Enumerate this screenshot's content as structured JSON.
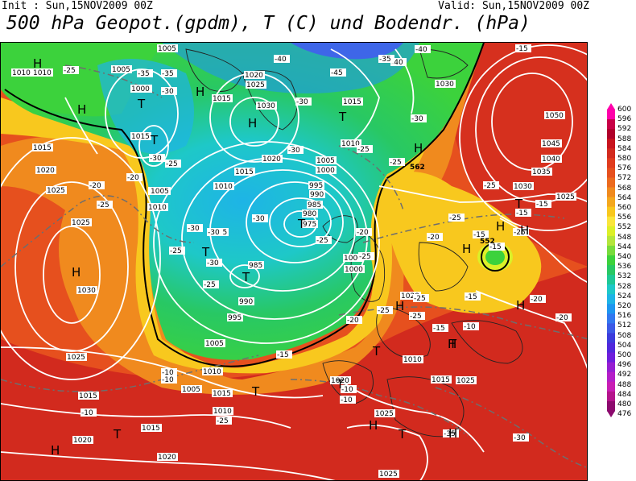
{
  "header": {
    "init": "Init : Sun,15NOV2009 00Z",
    "valid": "Valid: Sun,15NOV2009 00Z",
    "title": "500 hPa Geopot.(gpdm), T (C) und Bodendr. (hPa)"
  },
  "legend": {
    "ticks": [
      "600",
      "596",
      "592",
      "588",
      "584",
      "580",
      "576",
      "572",
      "568",
      "564",
      "560",
      "556",
      "552",
      "548",
      "544",
      "540",
      "536",
      "532",
      "528",
      "524",
      "520",
      "516",
      "512",
      "508",
      "504",
      "500",
      "496",
      "492",
      "488",
      "484",
      "480",
      "476"
    ],
    "colors": [
      "#ff00aa",
      "#c80046",
      "#b0002a",
      "#c8141e",
      "#d22a1e",
      "#e03c1e",
      "#e6501e",
      "#ec6a1e",
      "#f08a1e",
      "#f4a81e",
      "#f8c81e",
      "#fae63c",
      "#dcf028",
      "#b4e63c",
      "#78dc3c",
      "#3cd23c",
      "#28c864",
      "#1ec896",
      "#1ec8c8",
      "#1eb4e6",
      "#1e96f0",
      "#3278f0",
      "#3c5ae6",
      "#3c3cdc",
      "#5028dc",
      "#6e1edc",
      "#961ed2",
      "#b41ec8",
      "#c81eb4",
      "#b4148c",
      "#8c0a6e"
    ]
  },
  "map": {
    "pressure_labels": [
      "1005",
      "1010",
      "1010",
      "1000",
      "1005",
      "1020",
      "1025",
      "1015",
      "1030",
      "1030",
      "1015",
      "1010",
      "1015",
      "1020",
      "1010",
      "1025",
      "1050",
      "1045",
      "1040",
      "1035",
      "1030",
      "1025",
      "1020",
      "1015",
      "1010",
      "1025",
      "1030",
      "1000",
      "1005",
      "1015",
      "1010",
      "1000",
      "1005",
      "995",
      "990",
      "985",
      "980",
      "975",
      "995",
      "985",
      "990",
      "995",
      "1000",
      "1005",
      "1010",
      "1020",
      "1025",
      "1015",
      "1015",
      "1020",
      "1020",
      "1025",
      "1025",
      "1015",
      "1010",
      "1005",
      "1010",
      "1020",
      "1015",
      "1025",
      "1000"
    ],
    "temperature_labels": [
      "-25",
      "-35",
      "-35",
      "-30",
      "-25",
      "-30",
      "-40",
      "-40",
      "-40",
      "-45",
      "-35",
      "-30",
      "-30",
      "-30",
      "-25",
      "-25",
      "-20",
      "-20",
      "-25",
      "-30",
      "-30",
      "-30",
      "-25",
      "-25",
      "-20",
      "-25",
      "-30",
      "-25",
      "-25",
      "-20",
      "-15",
      "-15",
      "-15",
      "-10",
      "-10",
      "-10",
      "-10",
      "-10",
      "-15",
      "-20",
      "-25",
      "-25",
      "-25",
      "-20",
      "-15",
      "-15",
      "-10",
      "-35",
      "-30",
      "-25",
      "-20",
      "-15",
      "-15",
      "-25",
      "-25"
    ],
    "highs": [
      "H",
      "H",
      "H",
      "H",
      "H",
      "H",
      "H",
      "H",
      "H",
      "H",
      "H",
      "H",
      "H",
      "H",
      "H"
    ],
    "lows": [
      "T",
      "T",
      "T",
      "T",
      "T",
      "T",
      "T",
      "T",
      "T",
      "T",
      "T",
      "T",
      "T"
    ],
    "contour_552": "552",
    "contour_562": "562"
  }
}
